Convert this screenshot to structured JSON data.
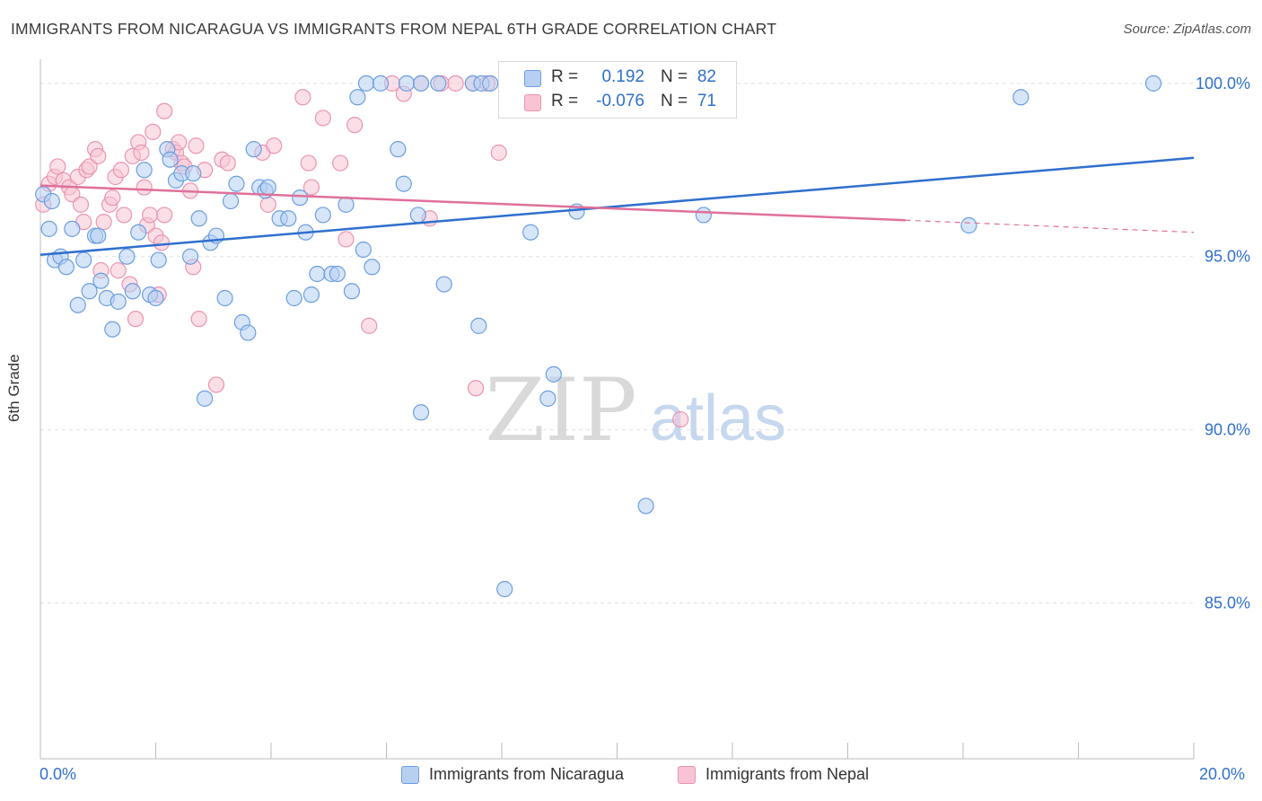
{
  "title": "IMMIGRANTS FROM NICARAGUA VS IMMIGRANTS FROM NEPAL 6TH GRADE CORRELATION CHART",
  "source": "Source: ZipAtlas.com",
  "watermark": {
    "zip": "ZIP",
    "atlas": "atlas"
  },
  "stats": {
    "nicaragua": {
      "r_label": "R =",
      "r_value": "0.192",
      "n_label": "N =",
      "n_value": "82"
    },
    "nepal": {
      "r_label": "R =",
      "r_value": "-0.076",
      "n_label": "N =",
      "n_value": "71"
    }
  },
  "colors": {
    "nicaragua_fill": "#b7d0f2",
    "nicaragua_stroke": "#6b9ee0",
    "nicaragua_line": "#2f6fce",
    "nepal_fill": "#f8c4d4",
    "nepal_stroke": "#ea94b0",
    "nepal_line": "#e0709a",
    "tick_label": "#2f6fce",
    "grid": "#e0e0e0"
  },
  "chart_data": {
    "type": "scatter",
    "title": "IMMIGRANTS FROM NICARAGUA VS IMMIGRANTS FROM NEPAL 6TH GRADE CORRELATION CHART",
    "xlabel": "",
    "ylabel": "6th Grade",
    "xlim": [
      0,
      20
    ],
    "ylim": [
      80.5,
      100.8
    ],
    "x_tick_labels": [
      "0.0%",
      "20.0%"
    ],
    "y_ticks": [
      85,
      90,
      95,
      100
    ],
    "y_tick_labels": [
      "85.0%",
      "90.0%",
      "95.0%",
      "100.0%"
    ],
    "grid": true,
    "legend_position": "bottom",
    "series": [
      {
        "name": "Immigrants from Nicaragua",
        "trend": {
          "x": [
            0,
            20
          ],
          "y": [
            95.05,
            97.85
          ]
        },
        "points": [
          [
            0.05,
            96.8
          ],
          [
            0.15,
            95.8
          ],
          [
            0.25,
            94.9
          ],
          [
            0.35,
            95.0
          ],
          [
            0.45,
            94.7
          ],
          [
            0.55,
            95.8
          ],
          [
            0.65,
            93.6
          ],
          [
            0.75,
            94.9
          ],
          [
            0.85,
            94.0
          ],
          [
            0.95,
            95.6
          ],
          [
            1.05,
            94.3
          ],
          [
            1.15,
            93.8
          ],
          [
            1.25,
            92.9
          ],
          [
            1.35,
            93.7
          ],
          [
            1.5,
            95.0
          ],
          [
            1.6,
            94.0
          ],
          [
            1.7,
            95.7
          ],
          [
            1.8,
            97.5
          ],
          [
            1.9,
            93.9
          ],
          [
            2.0,
            93.8
          ],
          [
            2.05,
            94.9
          ],
          [
            2.2,
            98.1
          ],
          [
            2.25,
            97.8
          ],
          [
            2.35,
            97.2
          ],
          [
            2.45,
            97.4
          ],
          [
            2.6,
            95.0
          ],
          [
            2.65,
            97.4
          ],
          [
            2.75,
            96.1
          ],
          [
            2.85,
            90.9
          ],
          [
            2.95,
            95.4
          ],
          [
            3.05,
            95.6
          ],
          [
            3.2,
            93.8
          ],
          [
            3.3,
            96.6
          ],
          [
            3.4,
            97.1
          ],
          [
            3.5,
            93.1
          ],
          [
            3.6,
            92.8
          ],
          [
            3.7,
            98.1
          ],
          [
            3.8,
            97.0
          ],
          [
            3.9,
            96.9
          ],
          [
            3.95,
            97.0
          ],
          [
            4.15,
            96.1
          ],
          [
            4.3,
            96.1
          ],
          [
            4.4,
            93.8
          ],
          [
            4.5,
            96.7
          ],
          [
            4.6,
            95.7
          ],
          [
            4.7,
            93.9
          ],
          [
            4.8,
            94.5
          ],
          [
            4.9,
            96.2
          ],
          [
            5.05,
            94.5
          ],
          [
            5.15,
            94.5
          ],
          [
            5.3,
            96.5
          ],
          [
            5.4,
            94.0
          ],
          [
            5.5,
            99.6
          ],
          [
            5.6,
            95.2
          ],
          [
            5.65,
            100.0
          ],
          [
            5.75,
            94.7
          ],
          [
            5.9,
            100.0
          ],
          [
            6.2,
            98.1
          ],
          [
            6.3,
            97.1
          ],
          [
            6.35,
            100.0
          ],
          [
            6.6,
            100.0
          ],
          [
            6.55,
            96.2
          ],
          [
            6.6,
            90.5
          ],
          [
            6.9,
            100.0
          ],
          [
            7.0,
            94.2
          ],
          [
            7.5,
            100.0
          ],
          [
            7.65,
            100.0
          ],
          [
            7.6,
            93.0
          ],
          [
            7.8,
            100.0
          ],
          [
            8.1,
            100.0
          ],
          [
            8.05,
            85.4
          ],
          [
            8.5,
            95.7
          ],
          [
            8.9,
            91.6
          ],
          [
            8.8,
            90.9
          ],
          [
            9.3,
            96.3
          ],
          [
            10.5,
            87.8
          ],
          [
            11.5,
            96.2
          ],
          [
            16.1,
            95.9
          ],
          [
            17.0,
            99.6
          ],
          [
            19.3,
            100.0
          ],
          [
            0.2,
            96.6
          ],
          [
            1.0,
            95.6
          ]
        ]
      },
      {
        "name": "Immigrants from Nepal",
        "trend": {
          "x": [
            0,
            15
          ],
          "y": [
            97.05,
            96.05
          ]
        },
        "trend_dashed": {
          "x": [
            15,
            20
          ],
          "y": [
            96.05,
            95.7
          ]
        },
        "points": [
          [
            0.05,
            96.5
          ],
          [
            0.15,
            97.1
          ],
          [
            0.25,
            97.3
          ],
          [
            0.3,
            97.6
          ],
          [
            0.4,
            97.2
          ],
          [
            0.5,
            97.0
          ],
          [
            0.55,
            96.8
          ],
          [
            0.65,
            97.3
          ],
          [
            0.7,
            96.5
          ],
          [
            0.75,
            96.0
          ],
          [
            0.8,
            97.5
          ],
          [
            0.85,
            97.6
          ],
          [
            0.95,
            98.1
          ],
          [
            1.0,
            97.9
          ],
          [
            1.05,
            94.6
          ],
          [
            1.1,
            96.0
          ],
          [
            1.2,
            96.5
          ],
          [
            1.25,
            96.7
          ],
          [
            1.3,
            97.3
          ],
          [
            1.35,
            94.6
          ],
          [
            1.4,
            97.5
          ],
          [
            1.45,
            96.2
          ],
          [
            1.55,
            94.2
          ],
          [
            1.6,
            97.9
          ],
          [
            1.65,
            93.2
          ],
          [
            1.7,
            98.3
          ],
          [
            1.75,
            98.0
          ],
          [
            1.8,
            97.0
          ],
          [
            1.85,
            95.9
          ],
          [
            1.9,
            96.2
          ],
          [
            1.95,
            98.6
          ],
          [
            2.0,
            95.6
          ],
          [
            2.05,
            93.9
          ],
          [
            2.1,
            95.4
          ],
          [
            2.15,
            96.2
          ],
          [
            2.15,
            99.2
          ],
          [
            2.3,
            98.1
          ],
          [
            2.35,
            98.0
          ],
          [
            2.4,
            98.3
          ],
          [
            2.45,
            97.7
          ],
          [
            2.5,
            97.6
          ],
          [
            2.6,
            96.9
          ],
          [
            2.65,
            94.7
          ],
          [
            2.7,
            98.2
          ],
          [
            2.75,
            93.2
          ],
          [
            2.85,
            97.5
          ],
          [
            3.05,
            91.3
          ],
          [
            3.15,
            97.8
          ],
          [
            3.25,
            97.7
          ],
          [
            3.85,
            98.0
          ],
          [
            3.95,
            96.5
          ],
          [
            4.05,
            98.2
          ],
          [
            4.55,
            99.6
          ],
          [
            4.65,
            97.7
          ],
          [
            4.7,
            97.0
          ],
          [
            4.9,
            99.0
          ],
          [
            5.2,
            97.7
          ],
          [
            5.3,
            95.5
          ],
          [
            5.45,
            98.8
          ],
          [
            5.7,
            93.0
          ],
          [
            6.1,
            100.0
          ],
          [
            6.3,
            99.7
          ],
          [
            6.6,
            100.0
          ],
          [
            6.75,
            96.1
          ],
          [
            6.95,
            100.0
          ],
          [
            7.2,
            100.0
          ],
          [
            7.5,
            100.0
          ],
          [
            7.55,
            91.2
          ],
          [
            7.75,
            100.0
          ],
          [
            7.95,
            98.0
          ],
          [
            11.1,
            90.3
          ]
        ]
      }
    ]
  },
  "legend": {
    "nicaragua": "Immigrants from Nicaragua",
    "nepal": "Immigrants from Nepal"
  }
}
